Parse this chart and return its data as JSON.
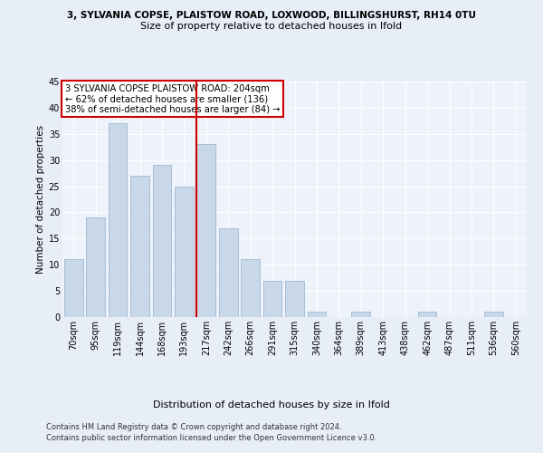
{
  "title1": "3, SYLVANIA COPSE, PLAISTOW ROAD, LOXWOOD, BILLINGSHURST, RH14 0TU",
  "title2": "Size of property relative to detached houses in Ifold",
  "xlabel": "Distribution of detached houses by size in Ifold",
  "ylabel": "Number of detached properties",
  "bar_color": "#c8d8e8",
  "bar_edgecolor": "#a0b8d0",
  "categories": [
    "70sqm",
    "95sqm",
    "119sqm",
    "144sqm",
    "168sqm",
    "193sqm",
    "217sqm",
    "242sqm",
    "266sqm",
    "291sqm",
    "315sqm",
    "340sqm",
    "364sqm",
    "389sqm",
    "413sqm",
    "438sqm",
    "462sqm",
    "487sqm",
    "511sqm",
    "536sqm",
    "560sqm"
  ],
  "values": [
    11,
    19,
    37,
    27,
    29,
    25,
    33,
    17,
    11,
    7,
    7,
    1,
    0,
    1,
    0,
    0,
    1,
    0,
    0,
    1,
    0
  ],
  "vline_index": 6,
  "vline_color": "#cc0000",
  "annotation_text": "3 SYLVANIA COPSE PLAISTOW ROAD: 204sqm\n← 62% of detached houses are smaller (136)\n38% of semi-detached houses are larger (84) →",
  "annotation_box_color": "#ffffff",
  "annotation_edge_color": "#cc0000",
  "ylim": [
    0,
    45
  ],
  "yticks": [
    0,
    5,
    10,
    15,
    20,
    25,
    30,
    35,
    40,
    45
  ],
  "footer1": "Contains HM Land Registry data © Crown copyright and database right 2024.",
  "footer2": "Contains public sector information licensed under the Open Government Licence v3.0.",
  "background_color": "#e8eef8",
  "plot_background": "#eef2fa",
  "title1_fontsize": 7.5,
  "title2_fontsize": 8.0,
  "ylabel_fontsize": 7.5,
  "xlabel_fontsize": 8.0,
  "tick_fontsize": 7.0,
  "footer_fontsize": 6.0
}
